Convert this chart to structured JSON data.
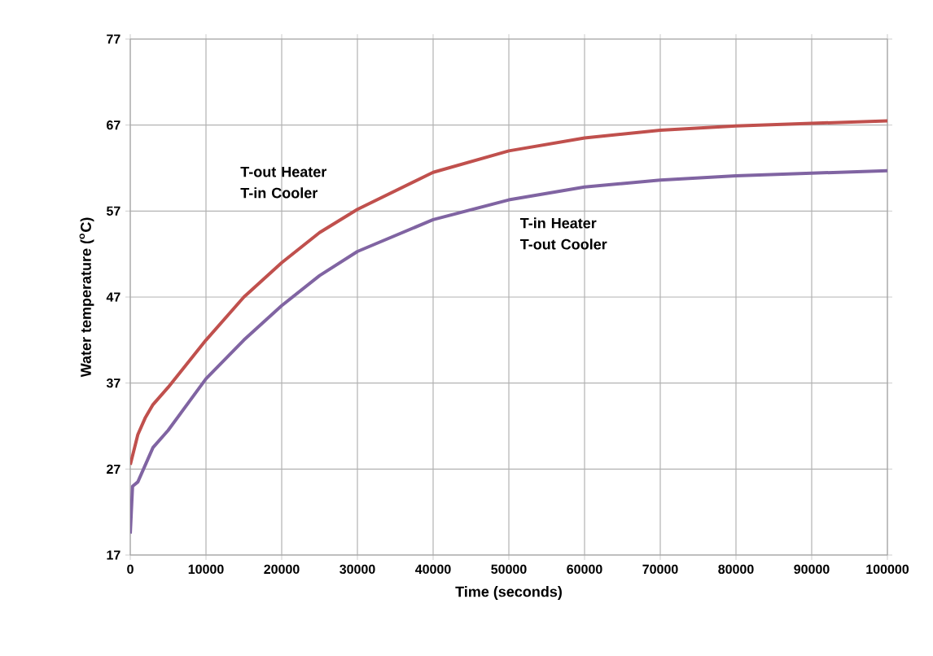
{
  "chart_data": {
    "type": "line",
    "xlabel": "Time (seconds)",
    "ylabel": "Water temperature ($^{o}$C)",
    "xlim": [
      0,
      100000
    ],
    "ylim": [
      17,
      77
    ],
    "xticks": [
      0,
      10000,
      20000,
      30000,
      40000,
      50000,
      60000,
      70000,
      80000,
      90000,
      100000
    ],
    "yticks": [
      17,
      27,
      37,
      47,
      57,
      67,
      77
    ],
    "grid": true,
    "marker": "none",
    "line_style": "solid",
    "series": [
      {
        "name": "T-out Heater T-in Cooler",
        "color": "#c0504d",
        "x": [
          0,
          1000,
          2000,
          3000,
          5000,
          10000,
          15000,
          20000,
          25000,
          30000,
          40000,
          50000,
          60000,
          70000,
          80000,
          90000,
          100000
        ],
        "values": [
          27.5,
          31,
          33,
          34.5,
          36.5,
          42,
          47,
          51,
          54.5,
          57.2,
          61.5,
          64,
          65.5,
          66.4,
          66.9,
          67.2,
          67.5
        ]
      },
      {
        "name": "T-in Heater T-out Cooler",
        "color": "#8064a2",
        "x": [
          0,
          300,
          1000,
          3000,
          5000,
          10000,
          15000,
          20000,
          25000,
          30000,
          40000,
          50000,
          60000,
          70000,
          80000,
          90000,
          100000
        ],
        "values": [
          19.5,
          25,
          25.5,
          29.5,
          31.5,
          37.5,
          42,
          46,
          49.5,
          52.3,
          56,
          58.3,
          59.8,
          60.6,
          61.1,
          61.4,
          61.7
        ]
      }
    ]
  }
}
